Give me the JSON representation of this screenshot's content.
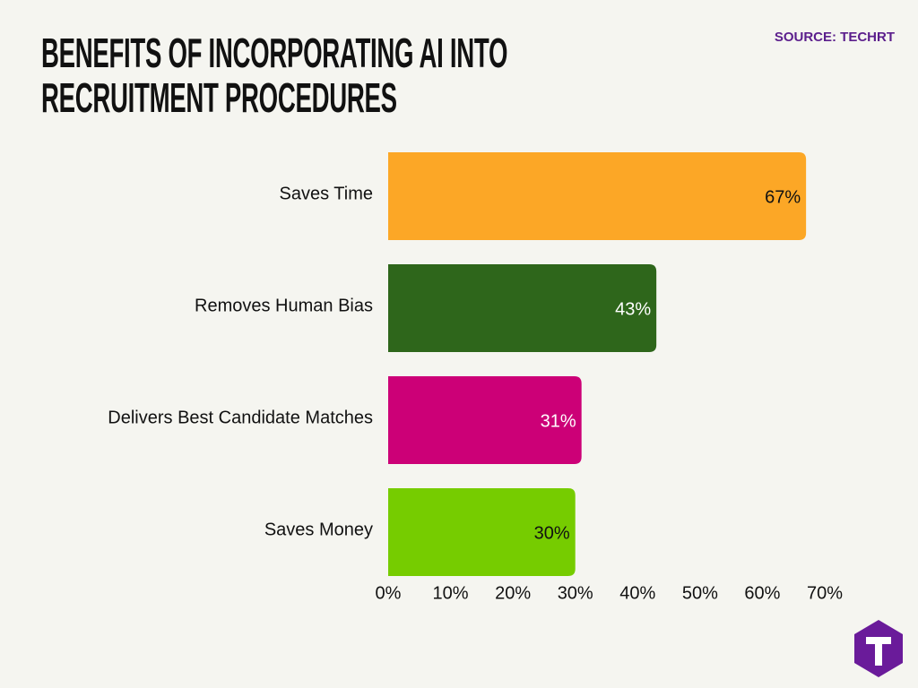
{
  "chart_data": {
    "type": "barh",
    "title": "BENEFITS OF INCORPORATING AI INTO RECRUITMENT PROCEDURES",
    "source": "SOURCE: TECHRT",
    "categories": [
      "Saves Time",
      "Removes Human Bias",
      "Delivers Best Candidate Matches",
      "Saves Money"
    ],
    "values": [
      67,
      43,
      31,
      30
    ],
    "value_labels": [
      "67%",
      "43%",
      "31%",
      "30%"
    ],
    "colors": [
      "#fca726",
      "#2e661b",
      "#cc0077",
      "#76cc00"
    ],
    "xlim": [
      0,
      70
    ],
    "xticks": [
      {
        "value": 0,
        "label": "0%"
      },
      {
        "value": 10,
        "label": "10%"
      },
      {
        "value": 20,
        "label": "20%"
      },
      {
        "value": 30,
        "label": "30%"
      },
      {
        "value": 40,
        "label": "40%"
      },
      {
        "value": 50,
        "label": "50%"
      },
      {
        "value": 60,
        "label": "60%"
      },
      {
        "value": 70,
        "label": "70%"
      }
    ],
    "grid": false
  }
}
